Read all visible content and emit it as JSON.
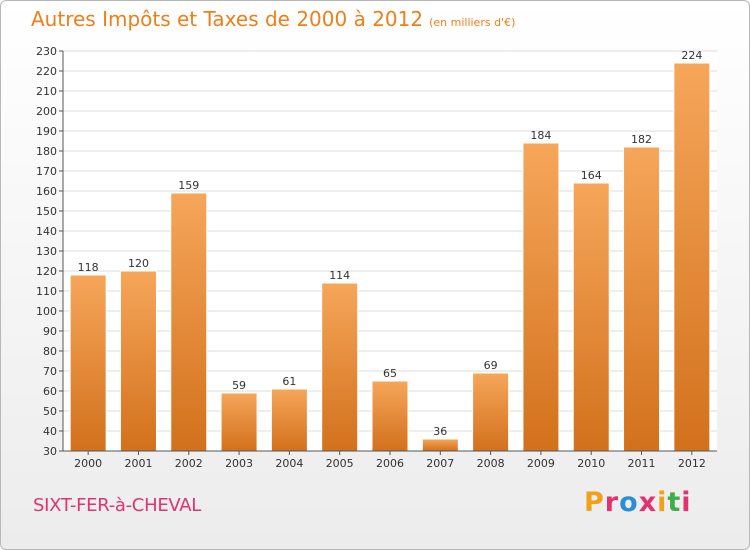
{
  "title": "Autres Impôts et Taxes de 2000 à 2012",
  "subtitle": "(en milliers d'€)",
  "commune": "SIXT-FER-à-CHEVAL",
  "brand": {
    "letters": [
      "P",
      "r",
      "o",
      "x",
      "i",
      "t",
      "i"
    ],
    "colors": [
      "#f0a01a",
      "#e0336f",
      "#2b8fd6",
      "#e0336f",
      "#f0a01a",
      "#3fae49",
      "#e0336f"
    ]
  },
  "colors": {
    "bar_top": "#f6a65a",
    "bar_bottom": "#d2711c",
    "title": "#ee7f1a",
    "commune": "#e0336f"
  },
  "chart_data": {
    "type": "bar",
    "title": "Autres Impôts et Taxes de 2000 à 2012",
    "subtitle": "(en milliers d'€)",
    "categories": [
      "2000",
      "2001",
      "2002",
      "2003",
      "2004",
      "2005",
      "2006",
      "2007",
      "2008",
      "2009",
      "2010",
      "2011",
      "2012"
    ],
    "values": [
      118,
      120,
      159,
      59,
      61,
      114,
      65,
      36,
      69,
      184,
      164,
      182,
      224
    ],
    "ylim": [
      30,
      230
    ],
    "yticks": [
      30,
      40,
      50,
      60,
      70,
      80,
      90,
      100,
      110,
      120,
      130,
      140,
      150,
      160,
      170,
      180,
      190,
      200,
      210,
      220,
      230
    ],
    "grid": true,
    "xlabel": "",
    "ylabel": ""
  }
}
